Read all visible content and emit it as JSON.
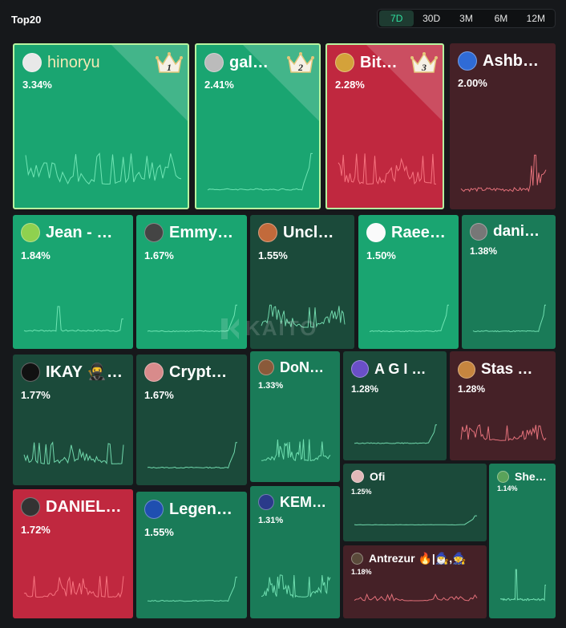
{
  "header": {
    "title": "Top20"
  },
  "time_range": {
    "options": [
      "7D",
      "30D",
      "3M",
      "6M",
      "12M"
    ],
    "active": "7D"
  },
  "watermark": "KAITO",
  "colors": {
    "green_bright": "#1aa571",
    "green_mid": "#1a7b58",
    "green_dark": "#1b4a3a",
    "red_bright": "#c0283f",
    "red_dark": "#452127",
    "rank_border": "#b8f4a0",
    "spark_green": "#7ff0c0",
    "spark_red": "#ff7f8a"
  },
  "tiles": [
    {
      "name": "hinoryu",
      "pct": "3.34%",
      "rank": "1"
    },
    {
      "name": "gal…",
      "pct": "2.41%",
      "rank": "2"
    },
    {
      "name": "Bit…",
      "pct": "2.28%",
      "rank": "3"
    },
    {
      "name": "Ashb…",
      "pct": "2.00%"
    },
    {
      "name": "Jean - …",
      "pct": "1.84%"
    },
    {
      "name": "Emmy…",
      "pct": "1.67%"
    },
    {
      "name": "Uncl…",
      "pct": "1.55%"
    },
    {
      "name": "Raee…",
      "pct": "1.50%"
    },
    {
      "name": "dani…",
      "pct": "1.38%"
    },
    {
      "name": "IKAY 🥷…",
      "pct": "1.77%"
    },
    {
      "name": "Crypt…",
      "pct": "1.67%"
    },
    {
      "name": "DoN…",
      "pct": "1.33%"
    },
    {
      "name": "A G I …",
      "pct": "1.28%"
    },
    {
      "name": "Stas …",
      "pct": "1.28%"
    },
    {
      "name": "Ofi",
      "pct": "1.25%"
    },
    {
      "name": "Sherry",
      "pct": "1.14%"
    },
    {
      "name": "DANIEL…",
      "pct": "1.72%"
    },
    {
      "name": "Legen…",
      "pct": "1.55%"
    },
    {
      "name": "KEM…",
      "pct": "1.31%"
    },
    {
      "name": "Antrezur 🔥|🧙‍♂️,🧙",
      "pct": "1.18%"
    }
  ]
}
